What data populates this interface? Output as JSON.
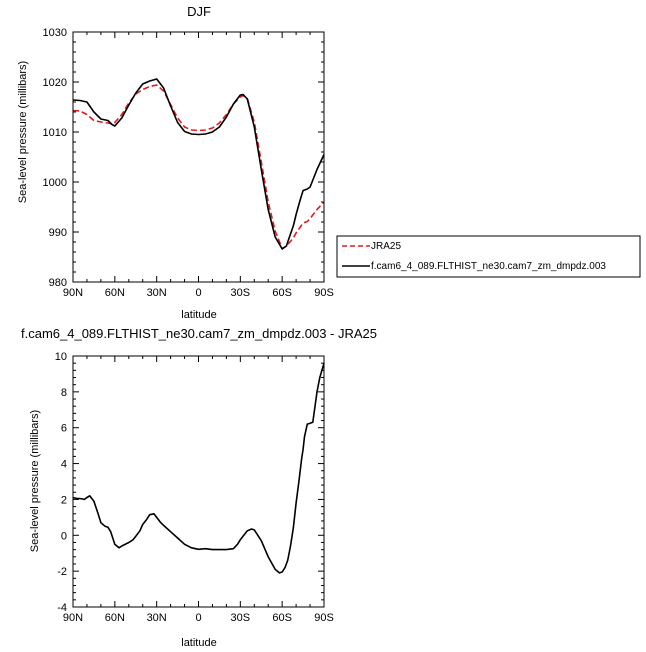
{
  "chart_data": [
    {
      "type": "line",
      "title": "DJF",
      "xlabel": "latitude",
      "ylabel": "Sea-level pressure (millibars)",
      "xlim": [
        90,
        -90
      ],
      "ylim": [
        980,
        1030
      ],
      "x_ticks": [
        90,
        60,
        30,
        0,
        -30,
        -60,
        -90
      ],
      "x_tick_labels": [
        "90N",
        "60N",
        "30N",
        "0",
        "30S",
        "60S",
        "90S"
      ],
      "y_ticks": [
        980,
        990,
        1000,
        1010,
        1020,
        1030
      ],
      "y_tick_labels": [
        "980",
        "990",
        "1000",
        "1010",
        "1020",
        "1030"
      ],
      "grid": false,
      "legend": "outside-right",
      "series": [
        {
          "name": "JRA25",
          "color": "#e41a1c",
          "dash": "dashed",
          "x": [
            90,
            85,
            80,
            75,
            70,
            65,
            62,
            60,
            55,
            50,
            45,
            40,
            35,
            30,
            25,
            20,
            15,
            10,
            5,
            0,
            -5,
            -10,
            -15,
            -20,
            -25,
            -30,
            -32,
            -35,
            -40,
            -45,
            -50,
            -55,
            -60,
            -63,
            -65,
            -68,
            -70,
            -73,
            -75,
            -78,
            -80,
            -85,
            -90
          ],
          "y": [
            1014.3,
            1014.2,
            1013.5,
            1012.3,
            1012.0,
            1011.8,
            1011.6,
            1011.9,
            1013.5,
            1015.8,
            1017.6,
            1018.5,
            1019.1,
            1019.4,
            1018.2,
            1015.5,
            1012.8,
            1011.0,
            1010.4,
            1010.3,
            1010.4,
            1010.8,
            1011.8,
            1013.5,
            1015.6,
            1017.0,
            1017.3,
            1016.7,
            1012.0,
            1004.0,
            996.0,
            990.2,
            986.7,
            987.2,
            987.8,
            988.8,
            989.8,
            991.0,
            991.8,
            992.1,
            992.7,
            994.5,
            996.0
          ]
        },
        {
          "name": "f.cam6_4_089.FLTHIST_ne30.cam7_zm_dmpdz.003",
          "color": "#000000",
          "dash": "solid",
          "x": [
            90,
            85,
            80,
            75,
            70,
            65,
            62,
            60,
            55,
            50,
            45,
            40,
            35,
            30,
            25,
            20,
            15,
            10,
            5,
            0,
            -5,
            -10,
            -15,
            -20,
            -25,
            -30,
            -32,
            -35,
            -40,
            -45,
            -50,
            -55,
            -60,
            -63,
            -65,
            -68,
            -70,
            -73,
            -75,
            -78,
            -80,
            -85,
            -90
          ],
          "y": [
            1016.4,
            1016.3,
            1016.0,
            1014.0,
            1012.6,
            1012.3,
            1011.5,
            1011.2,
            1012.8,
            1015.4,
            1017.8,
            1019.6,
            1020.2,
            1020.6,
            1018.8,
            1015.2,
            1011.9,
            1010.1,
            1009.6,
            1009.5,
            1009.6,
            1010.0,
            1011.0,
            1013.0,
            1015.6,
            1017.4,
            1017.5,
            1016.6,
            1011.0,
            1002.5,
            994.5,
            989.0,
            986.6,
            987.2,
            988.8,
            991.2,
            993.5,
            996.5,
            998.3,
            998.6,
            999.0,
            1002.5,
            1005.5
          ]
        }
      ]
    },
    {
      "type": "line",
      "title": "f.cam6_4_089.FLTHIST_ne30.cam7_zm_dmpdz.003 - JRA25",
      "xlabel": "latitude",
      "ylabel": "Sea-level pressure (millibars)",
      "xlim": [
        90,
        -90
      ],
      "ylim": [
        -4,
        10
      ],
      "x_ticks": [
        90,
        60,
        30,
        0,
        -30,
        -60,
        -90
      ],
      "x_tick_labels": [
        "90N",
        "60N",
        "30N",
        "0",
        "30S",
        "60S",
        "90S"
      ],
      "y_ticks": [
        -4,
        -2,
        0,
        2,
        4,
        6,
        8,
        10
      ],
      "y_tick_labels": [
        "-4",
        "-2",
        "0",
        "2",
        "4",
        "6",
        "8",
        "10"
      ],
      "grid": false,
      "series": [
        {
          "color": "#000000",
          "dash": "solid",
          "x": [
            90,
            87,
            85,
            82,
            80,
            78,
            75,
            72,
            70,
            67,
            65,
            63,
            60,
            57,
            55,
            50,
            47,
            45,
            42,
            40,
            37,
            35,
            32,
            30,
            27,
            25,
            20,
            15,
            10,
            5,
            0,
            -5,
            -10,
            -15,
            -20,
            -25,
            -28,
            -30,
            -33,
            -35,
            -38,
            -40,
            -45,
            -50,
            -55,
            -58,
            -60,
            -62,
            -64,
            -66,
            -68,
            -70,
            -72,
            -74,
            -75,
            -76,
            -78,
            -80,
            -82,
            -85,
            -87,
            -90
          ],
          "y": [
            2.1,
            2.05,
            2.05,
            2.0,
            2.1,
            2.2,
            1.9,
            1.2,
            0.7,
            0.5,
            0.45,
            0.2,
            -0.5,
            -0.7,
            -0.6,
            -0.4,
            -0.25,
            -0.05,
            0.25,
            0.6,
            0.9,
            1.15,
            1.2,
            1.0,
            0.7,
            0.55,
            0.2,
            -0.15,
            -0.5,
            -0.7,
            -0.78,
            -0.75,
            -0.8,
            -0.8,
            -0.8,
            -0.75,
            -0.5,
            -0.25,
            0.05,
            0.25,
            0.35,
            0.3,
            -0.3,
            -1.2,
            -1.9,
            -2.1,
            -2.05,
            -1.8,
            -1.4,
            -0.6,
            0.4,
            1.8,
            3.0,
            4.3,
            4.8,
            5.5,
            6.2,
            6.25,
            6.3,
            8.0,
            8.8,
            9.6
          ]
        }
      ]
    }
  ]
}
